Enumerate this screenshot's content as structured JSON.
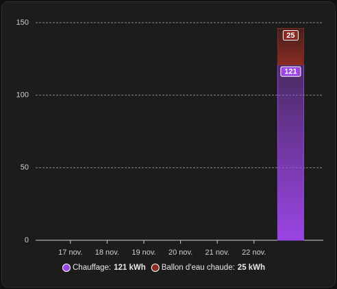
{
  "chart_data": {
    "type": "bar",
    "stacked": true,
    "categories": [
      "17 nov.",
      "18 nov.",
      "19 nov.",
      "20 nov.",
      "21 nov.",
      "22 nov.",
      null
    ],
    "series": [
      {
        "name": "Chauffage:",
        "legend_total": "121 kWh",
        "color": "#9b45e4",
        "values": [
          0,
          0,
          0,
          0,
          0,
          0,
          121
        ]
      },
      {
        "name": "Ballon d'eau chaude:",
        "legend_total": "25 kWh",
        "color": "#8a2a20",
        "values": [
          0,
          0,
          0,
          0,
          0,
          0,
          25
        ]
      }
    ],
    "ylim": [
      0,
      150
    ],
    "yticks": [
      0,
      50,
      100,
      150
    ],
    "grid": true
  }
}
